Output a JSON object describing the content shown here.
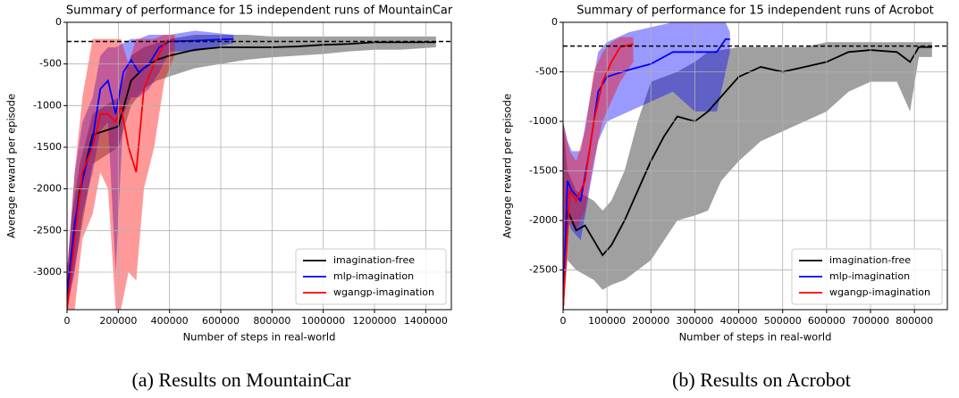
{
  "chart_data": [
    {
      "type": "line",
      "title": "Summary of performance for 15 independent runs of MountainCar",
      "x_label": "Number of steps in real-world",
      "y_label": "Average reward per episode",
      "xlim": [
        0,
        1500000
      ],
      "ylim": [
        -3450,
        0
      ],
      "xticks": [
        0,
        200000,
        400000,
        600000,
        800000,
        1000000,
        1200000,
        1400000
      ],
      "yticks": [
        0,
        -500,
        -1000,
        -1500,
        -2000,
        -2500,
        -3000
      ],
      "grid": true,
      "legend": "lower right",
      "hline": -230,
      "series": [
        {
          "name": "imagination-free",
          "color": "#000000",
          "band_color": "#808080",
          "x": [
            0,
            20000,
            50000,
            100000,
            150000,
            200000,
            250000,
            300000,
            350000,
            400000,
            500000,
            600000,
            700000,
            800000,
            900000,
            1000000,
            1100000,
            1200000,
            1300000,
            1440000
          ],
          "values": [
            -3250,
            -2700,
            -2000,
            -1350,
            -1300,
            -1250,
            -700,
            -550,
            -450,
            -400,
            -330,
            -300,
            -300,
            -300,
            -290,
            -270,
            -260,
            -240,
            -240,
            -240
          ],
          "lower": [
            -3450,
            -3100,
            -2600,
            -1700,
            -1600,
            -1500,
            -1000,
            -800,
            -700,
            -650,
            -550,
            -500,
            -450,
            -420,
            -400,
            -380,
            -350,
            -330,
            -330,
            -300
          ],
          "upper": [
            -3000,
            -2300,
            -1700,
            -1100,
            -1000,
            -900,
            -400,
            -300,
            -250,
            -200,
            -150,
            -150,
            -150,
            -170,
            -170,
            -170,
            -170,
            -170,
            -170,
            -170
          ]
        },
        {
          "name": "mlp-imagination",
          "color": "#0000ff",
          "band_color": "#0000ff",
          "x": [
            0,
            30000,
            60000,
            100000,
            130000,
            160000,
            190000,
            220000,
            250000,
            280000,
            320000,
            360000,
            400000,
            500000,
            650000
          ],
          "values": [
            -3300,
            -2400,
            -1900,
            -1400,
            -800,
            -700,
            -1100,
            -600,
            -450,
            -600,
            -500,
            -300,
            -230,
            -220,
            -200
          ],
          "lower": [
            -3450,
            -3000,
            -2300,
            -1800,
            -1300,
            -1200,
            -3000,
            -1100,
            -900,
            -900,
            -800,
            -600,
            -350,
            -350,
            -250
          ],
          "upper": [
            -3000,
            -1800,
            -1200,
            -900,
            -400,
            -300,
            -300,
            -250,
            -200,
            -200,
            -150,
            -150,
            -150,
            -100,
            -150
          ]
        },
        {
          "name": "wgangp-imagination",
          "color": "#ff0000",
          "band_color": "#ff0000",
          "x": [
            0,
            30000,
            60000,
            100000,
            130000,
            160000,
            190000,
            210000,
            240000,
            270000,
            300000,
            340000,
            380000,
            420000
          ],
          "values": [
            -3450,
            -2600,
            -1800,
            -1500,
            -1100,
            -1100,
            -1200,
            -1000,
            -1500,
            -1800,
            -800,
            -500,
            -250,
            -200
          ],
          "lower": [
            -3450,
            -3450,
            -2600,
            -2300,
            -1800,
            -2000,
            -3450,
            -3450,
            -3000,
            -3100,
            -2000,
            -1500,
            -700,
            -400
          ],
          "upper": [
            -3000,
            -1800,
            -900,
            -200,
            -200,
            -200,
            -200,
            -200,
            -500,
            -200,
            -200,
            -200,
            -150,
            -150
          ]
        }
      ]
    },
    {
      "type": "line",
      "title": "Summary of performance for 15 independent runs of Acrobot",
      "x_label": "Number of steps in real-world",
      "y_label": "Average reward per episode",
      "xlim": [
        0,
        875000
      ],
      "ylim": [
        -2900,
        0
      ],
      "xticks": [
        0,
        100000,
        200000,
        300000,
        400000,
        500000,
        600000,
        700000,
        800000
      ],
      "yticks": [
        0,
        -500,
        -1000,
        -1500,
        -2000,
        -2500
      ],
      "grid": true,
      "legend": "lower right",
      "hline": -240,
      "series": [
        {
          "name": "imagination-free",
          "color": "#000000",
          "band_color": "#808080",
          "x": [
            0,
            10000,
            30000,
            50000,
            70000,
            90000,
            110000,
            140000,
            170000,
            200000,
            230000,
            260000,
            300000,
            330000,
            360000,
            400000,
            450000,
            500000,
            550000,
            600000,
            650000,
            700000,
            760000,
            790000,
            810000,
            840000
          ],
          "values": [
            -2900,
            -1900,
            -2100,
            -2050,
            -2200,
            -2350,
            -2250,
            -2000,
            -1700,
            -1400,
            -1150,
            -950,
            -1000,
            -900,
            -750,
            -550,
            -450,
            -500,
            -450,
            -400,
            -300,
            -280,
            -300,
            -400,
            -250,
            -250
          ],
          "lower": [
            -2900,
            -2400,
            -2500,
            -2550,
            -2600,
            -2700,
            -2650,
            -2600,
            -2500,
            -2400,
            -2200,
            -2000,
            -1950,
            -1900,
            -1600,
            -1400,
            -1200,
            -1100,
            -1000,
            -900,
            -700,
            -600,
            -600,
            -900,
            -350,
            -350
          ],
          "upper": [
            -1000,
            -1500,
            -1700,
            -1750,
            -1800,
            -1900,
            -1800,
            -1500,
            -1000,
            -600,
            -550,
            -500,
            -400,
            -300,
            -280,
            -250,
            -250,
            -250,
            -250,
            -200,
            -200,
            -200,
            -200,
            -200,
            -200,
            -200
          ]
        },
        {
          "name": "mlp-imagination",
          "color": "#0000ff",
          "band_color": "#0000ff",
          "x": [
            0,
            10000,
            20000,
            40000,
            60000,
            80000,
            100000,
            150000,
            200000,
            250000,
            300000,
            350000,
            370000,
            380000
          ],
          "values": [
            -2900,
            -1600,
            -1700,
            -1800,
            -1300,
            -700,
            -550,
            -480,
            -420,
            -300,
            -300,
            -300,
            -170,
            -170
          ],
          "lower": [
            -2900,
            -2000,
            -2100,
            -2200,
            -1700,
            -1200,
            -1000,
            -900,
            -800,
            -700,
            -900,
            -900,
            -500,
            -300
          ],
          "upper": [
            -1000,
            -1200,
            -1300,
            -1300,
            -800,
            -300,
            -200,
            -100,
            -50,
            0,
            0,
            0,
            0,
            -100
          ]
        },
        {
          "name": "wgangp-imagination",
          "color": "#ff0000",
          "band_color": "#ff0000",
          "x": [
            0,
            15000,
            30000,
            50000,
            70000,
            90000,
            110000,
            130000,
            160000
          ],
          "values": [
            -2900,
            -1700,
            -1800,
            -1600,
            -1000,
            -600,
            -400,
            -250,
            -220
          ],
          "lower": [
            -2900,
            -2000,
            -2100,
            -1900,
            -1400,
            -1000,
            -800,
            -600,
            -400
          ],
          "upper": [
            -1000,
            -1300,
            -1400,
            -1100,
            -500,
            -300,
            -200,
            -150,
            -150
          ]
        }
      ]
    }
  ],
  "captions": [
    "(a) Results on MountainCar",
    "(b) Results on Acrobot"
  ]
}
